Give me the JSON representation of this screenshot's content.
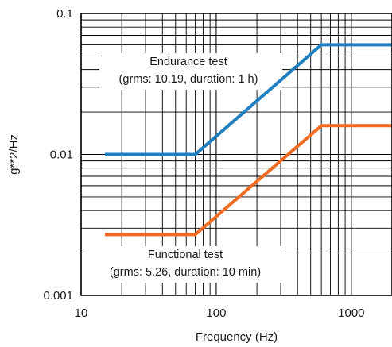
{
  "chart_data": {
    "type": "line",
    "xlabel": "Frequency (Hz)",
    "ylabel": "g**2/Hz",
    "x_scale": "log",
    "y_scale": "log",
    "xlim": [
      10,
      2000
    ],
    "ylim": [
      0.001,
      0.1
    ],
    "x_ticks": [
      {
        "value": 10,
        "label": "10"
      },
      {
        "value": 100,
        "label": "100"
      },
      {
        "value": 1000,
        "label": "1000"
      }
    ],
    "y_ticks": [
      {
        "value": 0.1,
        "label": "0.1"
      },
      {
        "value": 0.01,
        "label": "0.01"
      },
      {
        "value": 0.001,
        "label": "0.001"
      }
    ],
    "grid": true,
    "series": [
      {
        "color": "#1f7fc1",
        "x": [
          15,
          70,
          600,
          2000
        ],
        "y": [
          0.01,
          0.01,
          0.06,
          0.06
        ]
      },
      {
        "color": "#f26b21",
        "x": [
          15,
          70,
          600,
          2000
        ],
        "y": [
          0.0027,
          0.0027,
          0.016,
          0.016
        ]
      }
    ],
    "annotations": [
      {
        "lines": [
          "Endurance test",
          "(grms: 10.19, duration: 1 h)"
        ]
      },
      {
        "lines": [
          "Functional test",
          "(grms: 5.26, duration: 10 min)"
        ]
      }
    ]
  }
}
